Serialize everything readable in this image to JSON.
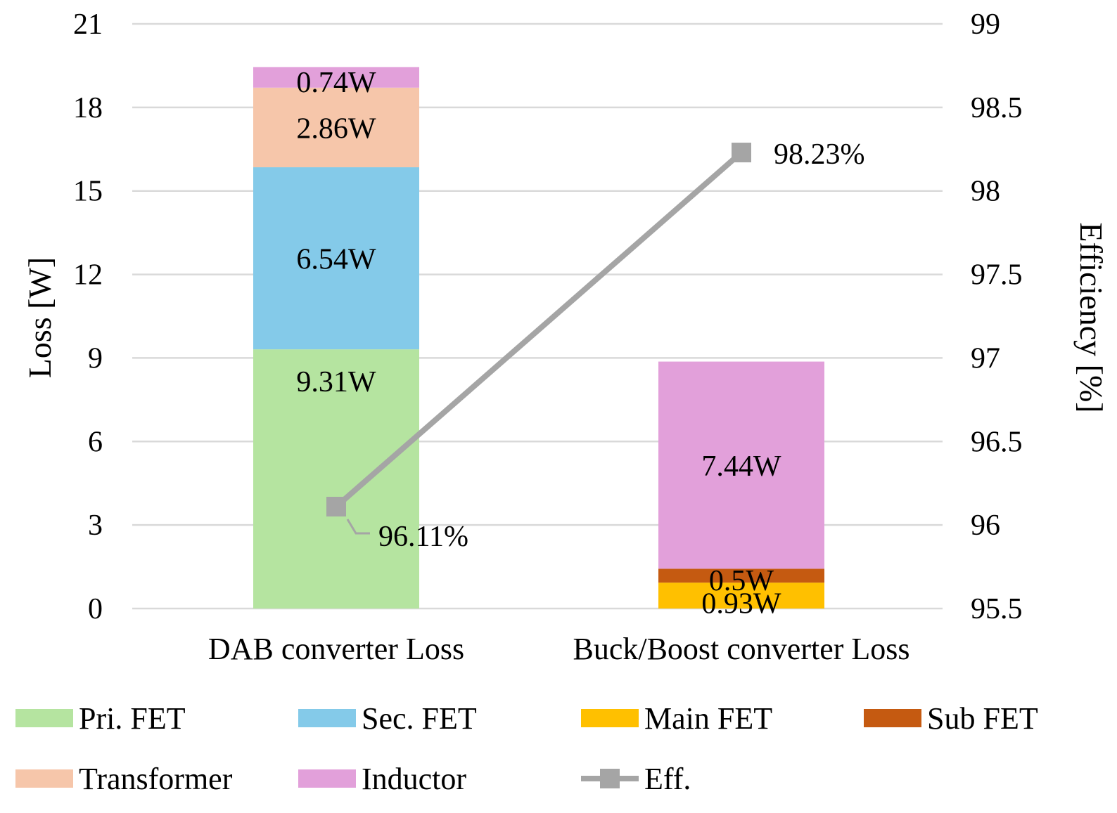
{
  "chart_data": {
    "type": "bar",
    "stacked": true,
    "categories": [
      "DAB converter Loss",
      "Buck/Boost converter Loss"
    ],
    "series": [
      {
        "name": "Pri. FET",
        "color": "#b5e4a0",
        "values": [
          9.31,
          0
        ],
        "labels": [
          "9.31W",
          ""
        ]
      },
      {
        "name": "Sec. FET",
        "color": "#84cae9",
        "values": [
          6.54,
          0
        ],
        "labels": [
          "6.54W",
          ""
        ]
      },
      {
        "name": "Main FET",
        "color": "#ffc000",
        "values": [
          0,
          0.93
        ],
        "labels": [
          "",
          "0.93W"
        ]
      },
      {
        "name": "Sub FET",
        "color": "#c55a11",
        "values": [
          0,
          0.5
        ],
        "labels": [
          "",
          "0.5W"
        ]
      },
      {
        "name": "Transformer",
        "color": "#f6c6aa",
        "values": [
          2.86,
          0
        ],
        "labels": [
          "2.86W",
          ""
        ]
      },
      {
        "name": "Inductor",
        "color": "#e2a0da",
        "values": [
          0.74,
          7.44
        ],
        "labels": [
          "0.74W",
          "7.44W"
        ]
      }
    ],
    "line_series": {
      "name": "Eff.",
      "color": "#a5a5a5",
      "values": [
        96.11,
        98.23
      ],
      "labels": [
        "96.11%",
        "98.23%"
      ],
      "axis": "right"
    },
    "y_left": {
      "label": "Loss [W]",
      "ylim": [
        0,
        21
      ],
      "ticks": [
        0,
        3,
        6,
        9,
        12,
        15,
        18,
        21
      ],
      "tick_labels": [
        "0",
        "3",
        "6",
        "9",
        "12",
        "15",
        "18",
        "21"
      ]
    },
    "y_right": {
      "label": "Efficiency [%]",
      "ylim": [
        95.5,
        99
      ],
      "ticks": [
        95.5,
        96,
        96.5,
        97,
        97.5,
        98,
        98.5,
        99
      ],
      "tick_labels": [
        "95.5",
        "96",
        "96.5",
        "97",
        "97.5",
        "98",
        "98.5",
        "99"
      ]
    },
    "grid": true,
    "legend_position": "bottom",
    "legend_order": [
      "Pri. FET",
      "Sec. FET",
      "Main FET",
      "Sub FET",
      "Transformer",
      "Inductor",
      "Eff."
    ]
  }
}
